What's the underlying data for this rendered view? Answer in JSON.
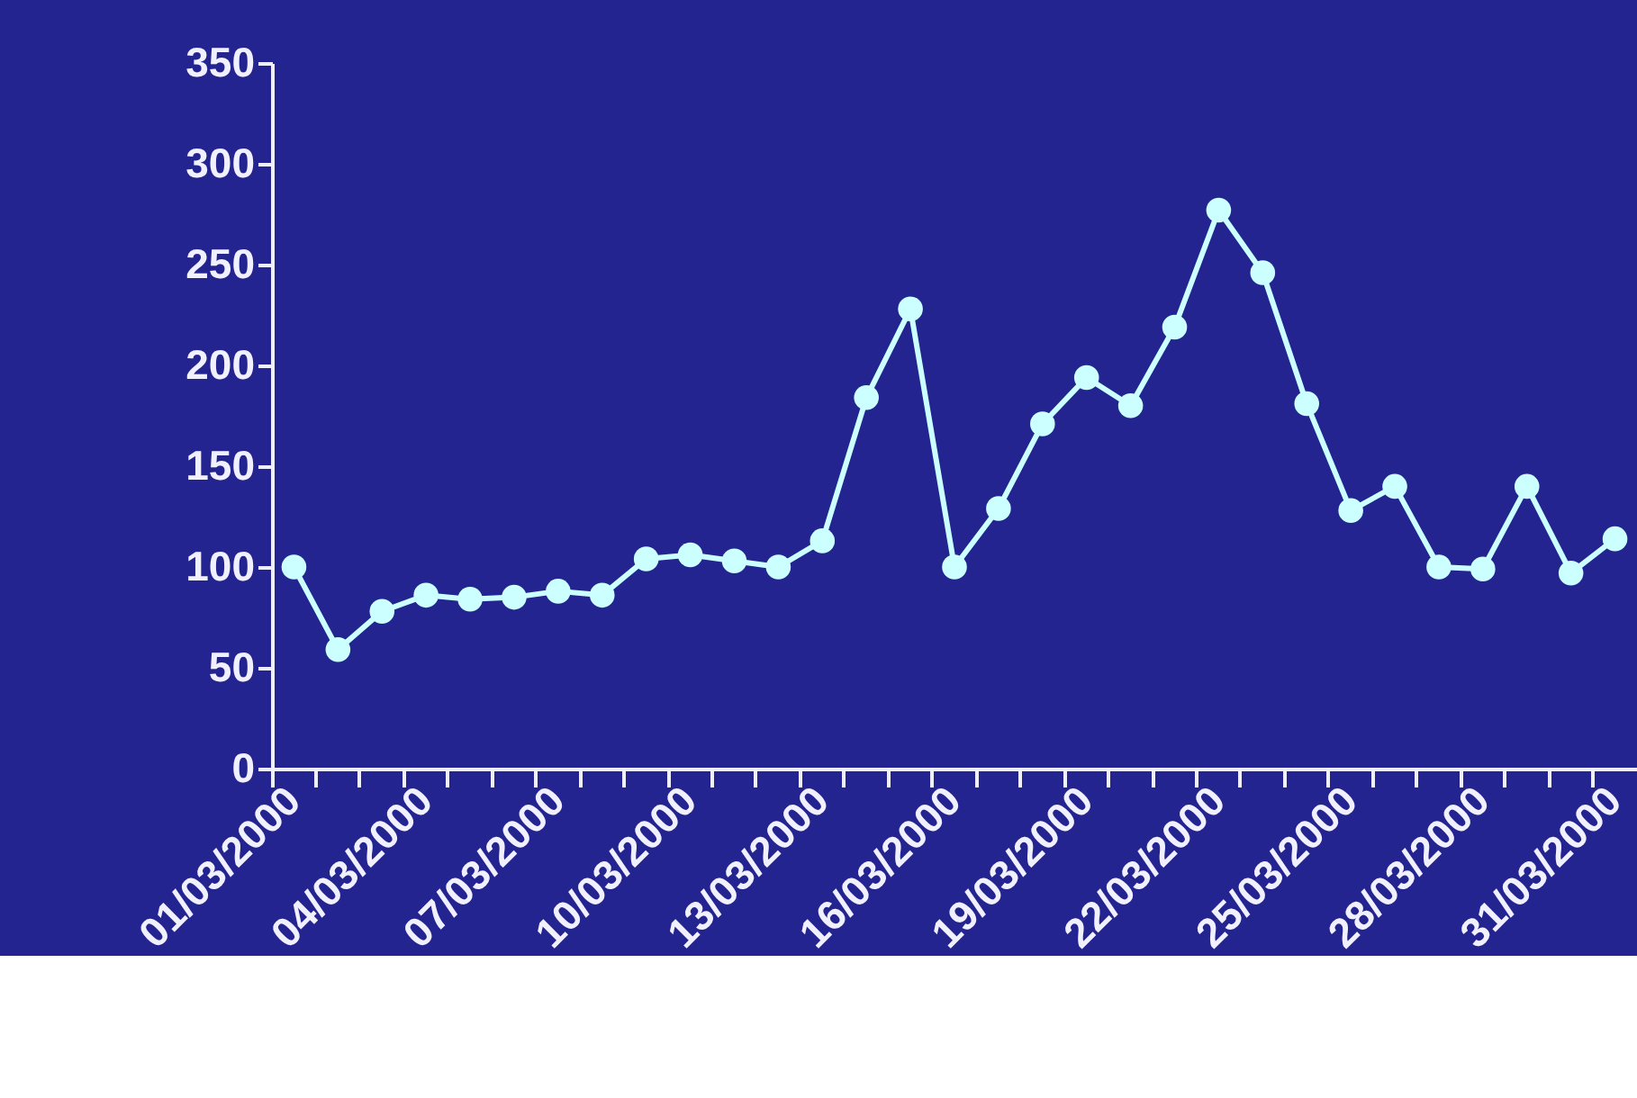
{
  "chart_data": {
    "type": "line",
    "categories": [
      "01/03/2000",
      null,
      null,
      "04/03/2000",
      null,
      null,
      "07/03/2000",
      null,
      null,
      "10/03/2000",
      null,
      null,
      "13/03/2000",
      null,
      null,
      "16/03/2000",
      null,
      null,
      "19/03/2000",
      null,
      null,
      "22/03/2000",
      null,
      null,
      "25/03/2000",
      null,
      null,
      "28/03/2000",
      null,
      null,
      "31/03/2000"
    ],
    "series": [
      {
        "color": "#ccffff",
        "values": [
          100,
          59,
          78,
          86,
          84,
          85,
          88,
          86,
          104,
          106,
          103,
          100,
          113,
          184,
          228,
          100,
          129,
          171,
          194,
          180,
          219,
          277,
          246,
          181,
          128,
          140,
          100,
          99,
          140,
          97,
          114
        ]
      }
    ],
    "ylim": [
      0,
      350
    ],
    "yticks": [
      0,
      50,
      100,
      150,
      200,
      250,
      300,
      350
    ],
    "grid": false,
    "marker": "circle",
    "line_style": "solid"
  }
}
